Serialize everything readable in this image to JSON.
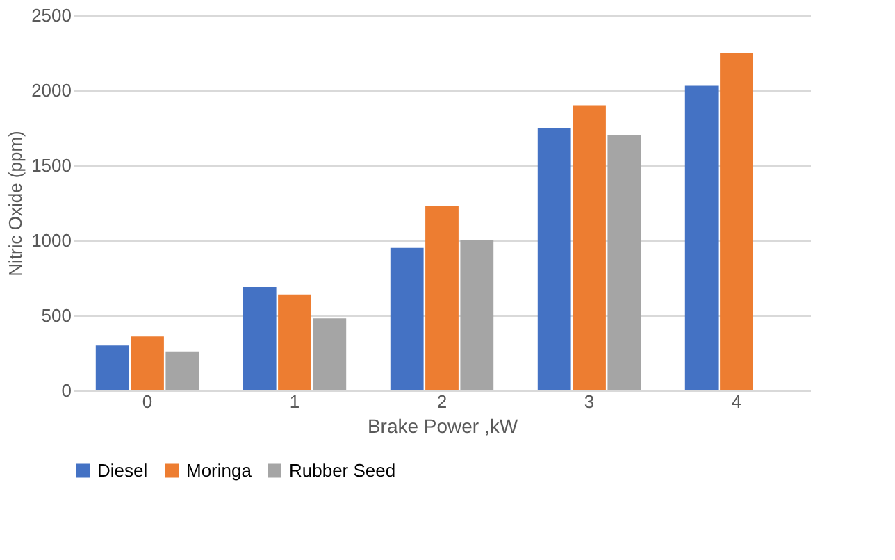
{
  "chart_data": {
    "type": "bar",
    "xlabel": "Brake Power ,kW",
    "ylabel": "Nitric Oxide (ppm)",
    "categories": [
      "0",
      "1",
      "2",
      "3",
      "4"
    ],
    "series": [
      {
        "name": "Diesel",
        "color": "#4472c4",
        "values": [
          300,
          690,
          950,
          1750,
          2030
        ]
      },
      {
        "name": "Moringa",
        "color": "#ed7d31",
        "values": [
          360,
          640,
          1230,
          1900,
          2250
        ]
      },
      {
        "name": "Rubber Seed",
        "color": "#a5a5a5",
        "values": [
          260,
          480,
          1000,
          1700,
          null
        ]
      }
    ],
    "ylim": [
      0,
      2500
    ],
    "yticks": [
      0,
      500,
      1000,
      1500,
      2000,
      2500
    ],
    "grid": "y",
    "legend": "bottom"
  }
}
